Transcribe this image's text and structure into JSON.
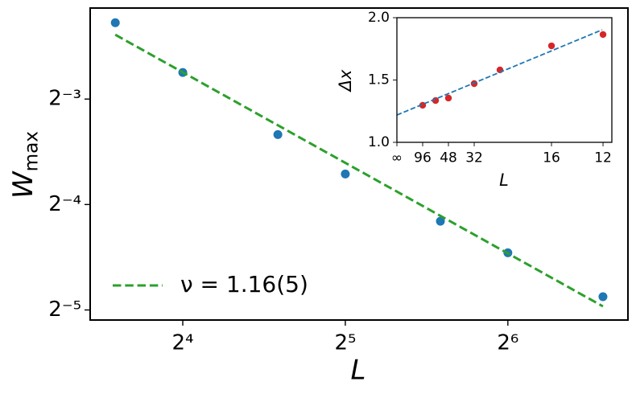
{
  "chart_data": [
    {
      "type": "scatter",
      "xscale": "log2",
      "yscale": "log2",
      "xlabel": "L",
      "ylabel": "W",
      "ylabel_sub": "max",
      "xlim": [
        10.78,
        106.8
      ],
      "ylim": [
        0.02925,
        0.2274
      ],
      "xticks": [
        {
          "value": 16,
          "label": "2⁴"
        },
        {
          "value": 32,
          "label": "2⁵"
        },
        {
          "value": 64,
          "label": "2⁶"
        }
      ],
      "yticks": [
        {
          "value": 0.125,
          "label": "2⁻³"
        },
        {
          "value": 0.0625,
          "label": "2⁻⁴"
        },
        {
          "value": 0.03125,
          "label": "2⁻⁵"
        }
      ],
      "legend": "lower left",
      "series": [
        {
          "style": "points",
          "color": "#1f77b4",
          "x": [
            12,
            16,
            24,
            32,
            48,
            64,
            96
          ],
          "values": [
            0.2065,
            0.1489,
            0.099,
            0.0764,
            0.056,
            0.0455,
            0.0341
          ]
        },
        {
          "name": "ν = 1.16(5)",
          "style": "dashed",
          "color": "#2ca02c",
          "x": [
            12,
            96
          ],
          "values": [
            0.1908,
            0.032
          ]
        }
      ]
    },
    {
      "type": "scatter",
      "xscale": "linear",
      "yscale": "linear",
      "xlabel": "L",
      "ylabel": "Δx",
      "xlim": [
        0,
        0.0869
      ],
      "ylim": [
        1.0,
        2.0
      ],
      "xticks": [
        {
          "value": 0,
          "label": "∞"
        },
        {
          "value": 0.0104167,
          "label": "96"
        },
        {
          "value": 0.0208333,
          "label": "48"
        },
        {
          "value": 0.03125,
          "label": "32"
        },
        {
          "value": 0.0625,
          "label": "16"
        },
        {
          "value": 0.0833333,
          "label": "12"
        }
      ],
      "yticks": [
        {
          "value": 1.0,
          "label": "1.0"
        },
        {
          "value": 1.5,
          "label": "1.5"
        },
        {
          "value": 2.0,
          "label": "2.0"
        }
      ],
      "series": [
        {
          "style": "points",
          "color": "#d62728",
          "x": [
            0.0104167,
            0.015625,
            0.0208333,
            0.03125,
            0.0416667,
            0.0625,
            0.0833333
          ],
          "values": [
            1.297,
            1.335,
            1.355,
            1.471,
            1.581,
            1.774,
            1.865
          ]
        },
        {
          "style": "dashed",
          "color": "#1f77b4",
          "x": [
            0,
            0.083
          ],
          "values": [
            1.219,
            1.903
          ]
        }
      ]
    }
  ]
}
